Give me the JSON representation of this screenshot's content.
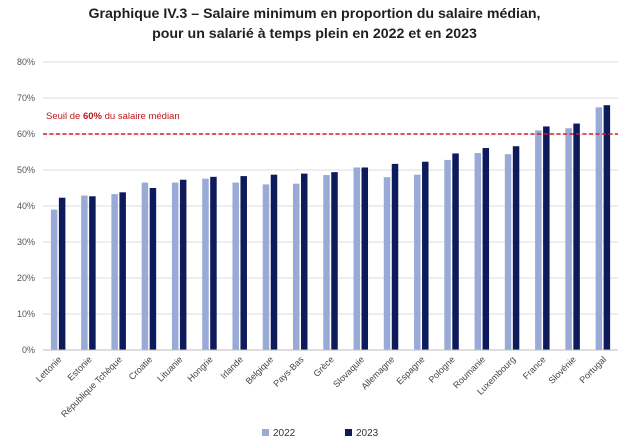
{
  "title_line1": "Graphique IV.3 – Salaire minimum en proportion du salaire médian,",
  "title_line2": "pour un salarié à temps plein en 2022 et en 2023",
  "colors": {
    "s2022": "#9aaad6",
    "s2023": "#0d1a5c",
    "threshold": "#d9191f",
    "grid": "#dcdcdc"
  },
  "chart_data": {
    "type": "bar",
    "title": "Graphique IV.3 – Salaire minimum en proportion du salaire médian, pour un salarié à temps plein en 2022 et en 2023",
    "ylim": [
      0,
      80
    ],
    "yticks": [
      "0%",
      "10%",
      "20%",
      "30%",
      "40%",
      "50%",
      "60%",
      "70%",
      "80%"
    ],
    "grid": true,
    "legend_position": "bottom",
    "categories": [
      "Lettonie",
      "Estonie",
      "République Tchèque",
      "Croatie",
      "Lituanie",
      "Hongrie",
      "Irlande",
      "Belgique",
      "Pays-Bas",
      "Grèce",
      "Slovaquie",
      "Allemagne",
      "Espagne",
      "Pologne",
      "Roumanie",
      "Luxembourg",
      "France",
      "Slovénie",
      "Portugal"
    ],
    "series": [
      {
        "name": "2022",
        "values": [
          39.0,
          42.9,
          43.3,
          46.5,
          46.5,
          47.6,
          46.5,
          46.0,
          46.2,
          48.6,
          50.7,
          48.0,
          48.7,
          52.8,
          54.7,
          54.4,
          61.0,
          61.6,
          67.4
        ]
      },
      {
        "name": "2023",
        "values": [
          42.3,
          42.7,
          43.8,
          45.0,
          47.3,
          48.1,
          48.3,
          48.7,
          49.0,
          49.4,
          50.7,
          51.7,
          52.3,
          54.6,
          56.1,
          56.6,
          62.1,
          62.9,
          68.0
        ]
      }
    ],
    "threshold": {
      "value": 60,
      "label_pre": "Seuil de ",
      "label_bold": "60%",
      "label_post": " du salaire médian"
    }
  }
}
